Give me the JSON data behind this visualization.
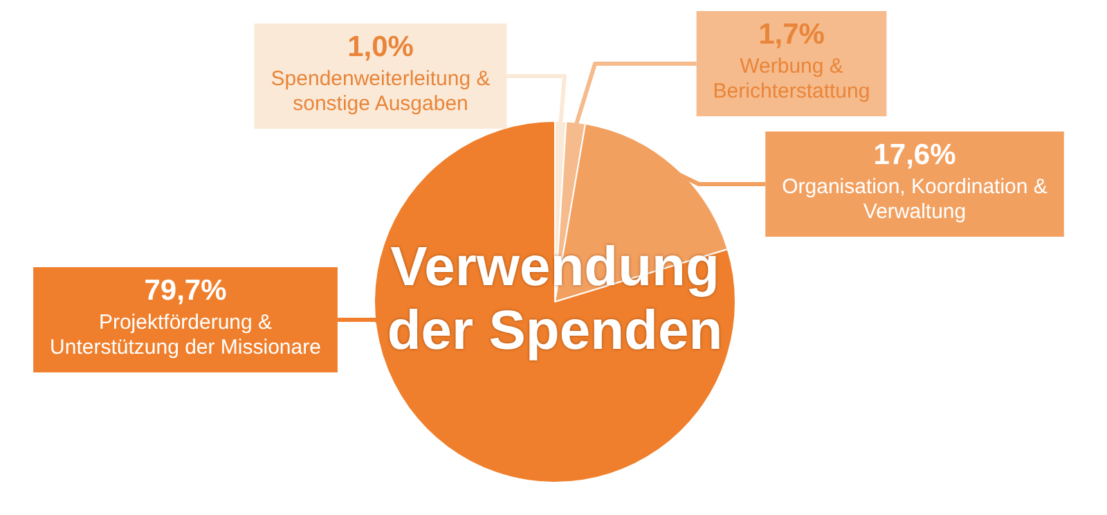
{
  "chart_data": {
    "type": "pie",
    "title": "Verwendung der Spenden",
    "categories": [
      "Spendenweiterleitung & sonstige Ausgaben",
      "Werbung & Berichterstattung",
      "Organisation, Koordination & Verwaltung",
      "Projektförderung & Unterstützung der Missionare"
    ],
    "values": [
      1.0,
      1.7,
      17.6,
      79.7
    ],
    "colors": [
      "#fbe9d7",
      "#f6bb8c",
      "#f2a060",
      "#ef7f2c"
    ],
    "value_labels": [
      "1,0%",
      "1,7%",
      "17,6%",
      "79,7%"
    ]
  }
}
